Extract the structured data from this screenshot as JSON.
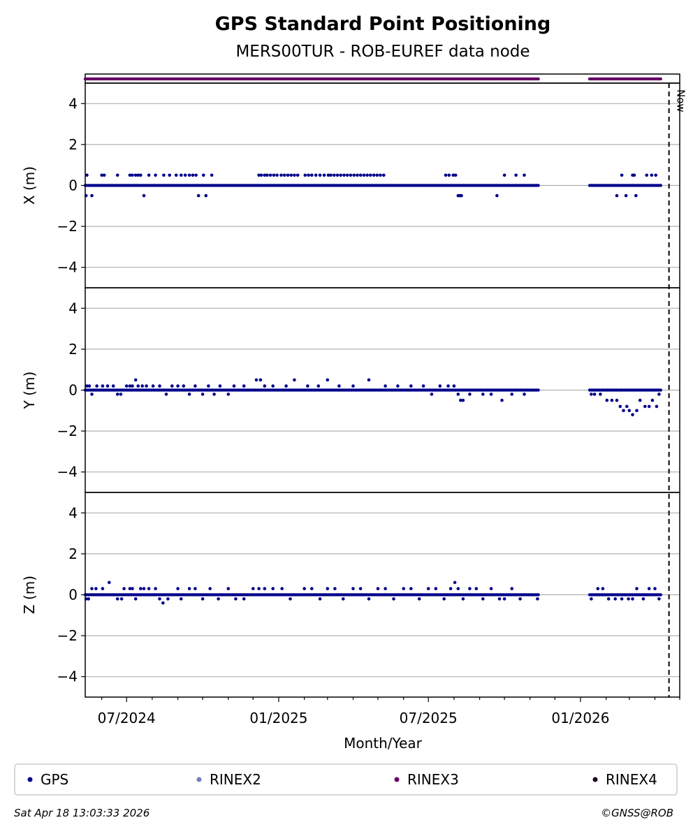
{
  "chart_data": {
    "type": "scatter",
    "title": "GPS Standard Point Positioning",
    "subtitle": "MERS00TUR - ROB-EUREF data node",
    "xlabel": "Month/Year",
    "x_tick_labels": [
      "07/2024",
      "01/2025",
      "07/2025",
      "01/2026"
    ],
    "x_ticks": [
      "2024-07-01",
      "2025-01-01",
      "2025-07-01",
      "2026-01-01"
    ],
    "xlim": [
      "2024-05-12",
      "2026-05-01"
    ],
    "now_marker": {
      "date": "2026-04-18",
      "label": "Now"
    },
    "y_ticks": [
      -4,
      -2,
      0,
      2,
      4
    ],
    "y_tick_labels": [
      "−4",
      "−2",
      "0",
      "2",
      "4"
    ],
    "ylim": [
      -5,
      5
    ],
    "grid": "horizontal",
    "legend_position": "bottom",
    "legend": [
      {
        "name": "GPS",
        "color": "#00008b"
      },
      {
        "name": "RINEX2",
        "color": "#7b7bc0"
      },
      {
        "name": "RINEX3",
        "color": "#660066"
      },
      {
        "name": "RINEX4",
        "color": "#1a0a1a"
      }
    ],
    "rinex3_coverage": [
      [
        "2024-05-12",
        "2025-11-12"
      ],
      [
        "2026-01-12",
        "2026-04-09"
      ]
    ],
    "data_spans": [
      [
        "2024-05-12",
        "2025-11-12"
      ],
      [
        "2026-01-12",
        "2026-04-09"
      ]
    ],
    "panels": [
      {
        "ylabel": "X (m)",
        "series": "GPS",
        "points": [
          [
            "2024-05-13",
            -0.5
          ],
          [
            "2024-05-14",
            0.5
          ],
          [
            "2024-05-20",
            -0.5
          ],
          [
            "2024-06-01",
            0.5
          ],
          [
            "2024-06-04",
            0.5
          ],
          [
            "2024-06-20",
            0.5
          ],
          [
            "2024-07-05",
            0.5
          ],
          [
            "2024-07-08",
            0.5
          ],
          [
            "2024-07-12",
            0.5
          ],
          [
            "2024-07-15",
            0.5
          ],
          [
            "2024-07-18",
            0.5
          ],
          [
            "2024-07-22",
            -0.5
          ],
          [
            "2024-07-28",
            0.5
          ],
          [
            "2024-08-05",
            0.5
          ],
          [
            "2024-08-15",
            0.5
          ],
          [
            "2024-08-22",
            0.5
          ],
          [
            "2024-08-30",
            0.5
          ],
          [
            "2024-09-05",
            0.5
          ],
          [
            "2024-09-10",
            0.5
          ],
          [
            "2024-09-15",
            0.5
          ],
          [
            "2024-09-19",
            0.5
          ],
          [
            "2024-09-23",
            0.5
          ],
          [
            "2024-09-26",
            -0.5
          ],
          [
            "2024-10-02",
            0.5
          ],
          [
            "2024-10-05",
            -0.5
          ],
          [
            "2024-10-12",
            0.5
          ],
          [
            "2024-12-08",
            0.5
          ],
          [
            "2024-12-11",
            0.5
          ],
          [
            "2024-12-15",
            0.5
          ],
          [
            "2024-12-18",
            0.5
          ],
          [
            "2024-12-22",
            0.5
          ],
          [
            "2024-12-26",
            0.5
          ],
          [
            "2024-12-30",
            0.5
          ],
          [
            "2025-01-04",
            0.5
          ],
          [
            "2025-01-08",
            0.5
          ],
          [
            "2025-01-12",
            0.5
          ],
          [
            "2025-01-16",
            0.5
          ],
          [
            "2025-01-20",
            0.5
          ],
          [
            "2025-01-24",
            0.5
          ],
          [
            "2025-02-02",
            0.5
          ],
          [
            "2025-02-06",
            0.5
          ],
          [
            "2025-02-10",
            0.5
          ],
          [
            "2025-02-15",
            0.5
          ],
          [
            "2025-02-20",
            0.5
          ],
          [
            "2025-02-25",
            0.5
          ],
          [
            "2025-03-02",
            0.5
          ],
          [
            "2025-03-05",
            0.5
          ],
          [
            "2025-03-09",
            0.5
          ],
          [
            "2025-03-13",
            0.5
          ],
          [
            "2025-03-17",
            0.5
          ],
          [
            "2025-03-21",
            0.5
          ],
          [
            "2025-03-25",
            0.5
          ],
          [
            "2025-03-29",
            0.5
          ],
          [
            "2025-04-02",
            0.5
          ],
          [
            "2025-04-06",
            0.5
          ],
          [
            "2025-04-10",
            0.5
          ],
          [
            "2025-04-14",
            0.5
          ],
          [
            "2025-04-18",
            0.5
          ],
          [
            "2025-04-22",
            0.5
          ],
          [
            "2025-04-26",
            0.5
          ],
          [
            "2025-04-30",
            0.5
          ],
          [
            "2025-05-04",
            0.5
          ],
          [
            "2025-05-08",
            0.5
          ],
          [
            "2025-07-22",
            0.5
          ],
          [
            "2025-07-26",
            0.5
          ],
          [
            "2025-07-31",
            0.5
          ],
          [
            "2025-08-03",
            0.5
          ],
          [
            "2025-08-06",
            -0.5
          ],
          [
            "2025-08-08",
            -0.5
          ],
          [
            "2025-08-10",
            -0.5
          ],
          [
            "2025-09-22",
            -0.5
          ],
          [
            "2025-10-01",
            0.5
          ],
          [
            "2025-10-15",
            0.5
          ],
          [
            "2025-10-25",
            0.5
          ],
          [
            "2026-02-14",
            -0.5
          ],
          [
            "2026-02-20",
            0.5
          ],
          [
            "2026-02-25",
            -0.5
          ],
          [
            "2026-03-05",
            0.5
          ],
          [
            "2026-03-07",
            0.5
          ],
          [
            "2026-03-09",
            -0.5
          ],
          [
            "2026-03-22",
            0.5
          ],
          [
            "2026-03-28",
            0.5
          ],
          [
            "2026-04-02",
            0.5
          ]
        ],
        "baseline": 0
      },
      {
        "ylabel": "Y (m)",
        "series": "GPS",
        "points": [
          [
            "2024-05-14",
            0.2
          ],
          [
            "2024-05-17",
            0.2
          ],
          [
            "2024-05-20",
            -0.2
          ],
          [
            "2024-05-26",
            0.2
          ],
          [
            "2024-06-02",
            0.2
          ],
          [
            "2024-06-08",
            0.2
          ],
          [
            "2024-06-15",
            0.2
          ],
          [
            "2024-06-20",
            -0.2
          ],
          [
            "2024-06-24",
            -0.2
          ],
          [
            "2024-07-01",
            0.2
          ],
          [
            "2024-07-05",
            0.2
          ],
          [
            "2024-07-08",
            0.2
          ],
          [
            "2024-07-12",
            0.5
          ],
          [
            "2024-07-15",
            0.2
          ],
          [
            "2024-07-20",
            0.2
          ],
          [
            "2024-07-25",
            0.2
          ],
          [
            "2024-08-02",
            0.2
          ],
          [
            "2024-08-10",
            0.2
          ],
          [
            "2024-08-18",
            -0.2
          ],
          [
            "2024-08-25",
            0.2
          ],
          [
            "2024-09-01",
            0.2
          ],
          [
            "2024-09-08",
            0.2
          ],
          [
            "2024-09-15",
            -0.2
          ],
          [
            "2024-09-22",
            0.2
          ],
          [
            "2024-10-01",
            -0.2
          ],
          [
            "2024-10-08",
            0.2
          ],
          [
            "2024-10-15",
            -0.2
          ],
          [
            "2024-10-22",
            0.2
          ],
          [
            "2024-11-01",
            -0.2
          ],
          [
            "2024-11-08",
            0.2
          ],
          [
            "2024-11-20",
            0.2
          ],
          [
            "2024-12-05",
            0.5
          ],
          [
            "2024-12-10",
            0.5
          ],
          [
            "2024-12-15",
            0.2
          ],
          [
            "2024-12-25",
            0.2
          ],
          [
            "2025-01-10",
            0.2
          ],
          [
            "2025-01-20",
            0.5
          ],
          [
            "2025-02-05",
            0.2
          ],
          [
            "2025-02-18",
            0.2
          ],
          [
            "2025-03-01",
            0.5
          ],
          [
            "2025-03-15",
            0.2
          ],
          [
            "2025-04-01",
            0.2
          ],
          [
            "2025-04-20",
            0.5
          ],
          [
            "2025-05-10",
            0.2
          ],
          [
            "2025-05-25",
            0.2
          ],
          [
            "2025-06-10",
            0.2
          ],
          [
            "2025-06-25",
            0.2
          ],
          [
            "2025-07-05",
            -0.2
          ],
          [
            "2025-07-15",
            0.2
          ],
          [
            "2025-07-25",
            0.2
          ],
          [
            "2025-08-01",
            0.2
          ],
          [
            "2025-08-06",
            -0.2
          ],
          [
            "2025-08-09",
            -0.5
          ],
          [
            "2025-08-12",
            -0.5
          ],
          [
            "2025-08-20",
            -0.2
          ],
          [
            "2025-09-05",
            -0.2
          ],
          [
            "2025-09-15",
            -0.2
          ],
          [
            "2025-09-28",
            -0.5
          ],
          [
            "2025-10-10",
            -0.2
          ],
          [
            "2025-10-25",
            -0.2
          ],
          [
            "2026-01-14",
            -0.2
          ],
          [
            "2026-01-18",
            -0.2
          ],
          [
            "2026-01-25",
            -0.2
          ],
          [
            "2026-02-02",
            -0.5
          ],
          [
            "2026-02-08",
            -0.5
          ],
          [
            "2026-02-14",
            -0.5
          ],
          [
            "2026-02-18",
            -0.8
          ],
          [
            "2026-02-22",
            -1.0
          ],
          [
            "2026-02-26",
            -0.8
          ],
          [
            "2026-03-01",
            -1.0
          ],
          [
            "2026-03-05",
            -1.2
          ],
          [
            "2026-03-10",
            -1.0
          ],
          [
            "2026-03-14",
            -0.5
          ],
          [
            "2026-03-20",
            -0.8
          ],
          [
            "2026-03-25",
            -0.8
          ],
          [
            "2026-03-29",
            -0.5
          ],
          [
            "2026-04-03",
            -0.8
          ],
          [
            "2026-04-06",
            -0.2
          ]
        ],
        "baseline": 0
      },
      {
        "ylabel": "Z (m)",
        "series": "GPS",
        "points": [
          [
            "2024-05-13",
            -0.2
          ],
          [
            "2024-05-16",
            -0.2
          ],
          [
            "2024-05-20",
            0.3
          ],
          [
            "2024-05-25",
            0.3
          ],
          [
            "2024-06-02",
            0.3
          ],
          [
            "2024-06-10",
            0.6
          ],
          [
            "2024-06-20",
            -0.2
          ],
          [
            "2024-06-25",
            -0.2
          ],
          [
            "2024-06-28",
            0.3
          ],
          [
            "2024-07-05",
            0.3
          ],
          [
            "2024-07-08",
            0.3
          ],
          [
            "2024-07-12",
            -0.2
          ],
          [
            "2024-07-18",
            0.3
          ],
          [
            "2024-07-22",
            0.3
          ],
          [
            "2024-07-28",
            0.3
          ],
          [
            "2024-08-05",
            0.3
          ],
          [
            "2024-08-10",
            -0.2
          ],
          [
            "2024-08-14",
            -0.4
          ],
          [
            "2024-08-20",
            -0.2
          ],
          [
            "2024-09-01",
            0.3
          ],
          [
            "2024-09-05",
            -0.2
          ],
          [
            "2024-09-15",
            0.3
          ],
          [
            "2024-09-22",
            0.3
          ],
          [
            "2024-10-01",
            -0.2
          ],
          [
            "2024-10-10",
            0.3
          ],
          [
            "2024-10-20",
            -0.2
          ],
          [
            "2024-11-01",
            0.3
          ],
          [
            "2024-11-10",
            -0.2
          ],
          [
            "2024-11-20",
            -0.2
          ],
          [
            "2024-12-01",
            0.3
          ],
          [
            "2024-12-08",
            0.3
          ],
          [
            "2024-12-15",
            0.3
          ],
          [
            "2024-12-25",
            0.3
          ],
          [
            "2025-01-05",
            0.3
          ],
          [
            "2025-01-15",
            -0.2
          ],
          [
            "2025-02-01",
            0.3
          ],
          [
            "2025-02-10",
            0.3
          ],
          [
            "2025-02-20",
            -0.2
          ],
          [
            "2025-03-01",
            0.3
          ],
          [
            "2025-03-10",
            0.3
          ],
          [
            "2025-03-20",
            -0.2
          ],
          [
            "2025-04-01",
            0.3
          ],
          [
            "2025-04-10",
            0.3
          ],
          [
            "2025-04-20",
            -0.2
          ],
          [
            "2025-05-01",
            0.3
          ],
          [
            "2025-05-10",
            0.3
          ],
          [
            "2025-05-20",
            -0.2
          ],
          [
            "2025-06-01",
            0.3
          ],
          [
            "2025-06-10",
            0.3
          ],
          [
            "2025-06-20",
            -0.2
          ],
          [
            "2025-07-01",
            0.3
          ],
          [
            "2025-07-10",
            0.3
          ],
          [
            "2025-07-20",
            -0.2
          ],
          [
            "2025-07-28",
            0.3
          ],
          [
            "2025-08-02",
            0.6
          ],
          [
            "2025-08-06",
            0.3
          ],
          [
            "2025-08-12",
            -0.2
          ],
          [
            "2025-08-20",
            0.3
          ],
          [
            "2025-08-28",
            0.3
          ],
          [
            "2025-09-05",
            -0.2
          ],
          [
            "2025-09-15",
            0.3
          ],
          [
            "2025-09-25",
            -0.2
          ],
          [
            "2025-10-01",
            -0.2
          ],
          [
            "2025-10-10",
            0.3
          ],
          [
            "2025-10-20",
            -0.2
          ],
          [
            "2025-11-10",
            -0.2
          ],
          [
            "2026-01-14",
            -0.2
          ],
          [
            "2026-01-22",
            0.3
          ],
          [
            "2026-01-28",
            0.3
          ],
          [
            "2026-02-04",
            -0.2
          ],
          [
            "2026-02-12",
            -0.2
          ],
          [
            "2026-02-20",
            -0.2
          ],
          [
            "2026-02-28",
            -0.2
          ],
          [
            "2026-03-05",
            -0.2
          ],
          [
            "2026-03-10",
            0.3
          ],
          [
            "2026-03-18",
            -0.2
          ],
          [
            "2026-03-25",
            0.3
          ],
          [
            "2026-04-01",
            0.3
          ],
          [
            "2026-04-06",
            -0.2
          ]
        ],
        "baseline": 0
      }
    ]
  },
  "footer": {
    "timestamp": "Sat Apr 18 13:03:33 2026",
    "copyright": "©GNSS@ROB"
  }
}
